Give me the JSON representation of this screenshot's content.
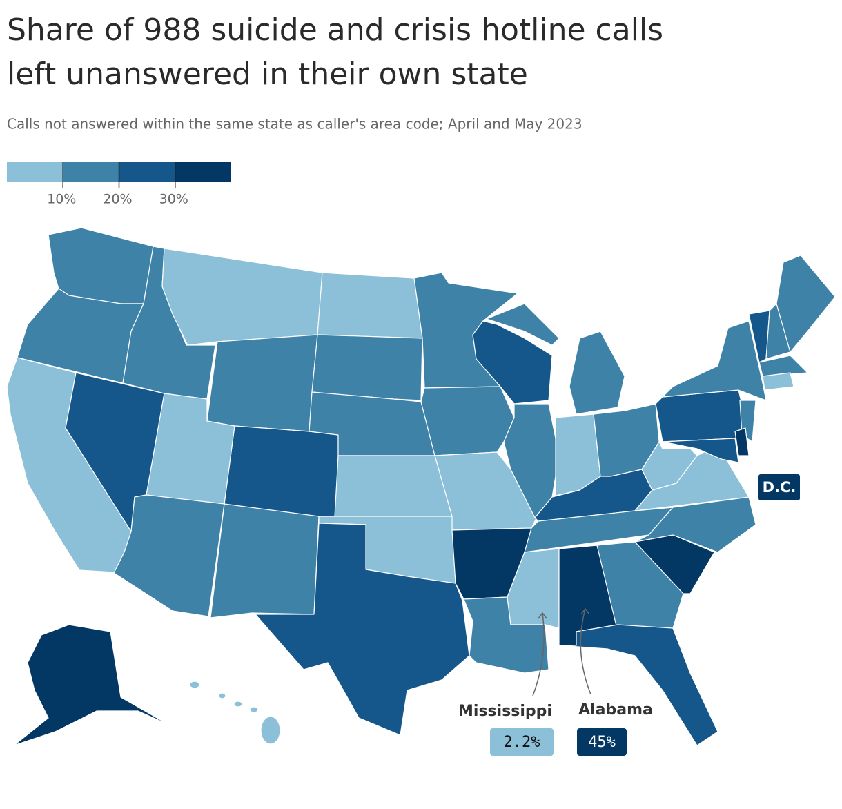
{
  "chart_data": {
    "type": "choropleth",
    "title": "Share of 988 suicide and crisis hotline calls left unanswered in their own state",
    "subtitle": "Calls not answered within the same state as caller's area code; April and May 2023",
    "legend": {
      "colors": [
        "#8bc0d8",
        "#3f82a8",
        "#15578a",
        "#033764"
      ],
      "lim": [
        0,
        40
      ],
      "ticks": [
        {
          "value": 10,
          "label": "10%"
        },
        {
          "value": 20,
          "label": "20%"
        },
        {
          "value": 30,
          "label": "30%"
        }
      ]
    },
    "annotations": [
      {
        "label": "Mississippi",
        "value": 2.2,
        "value_label": "2.2%"
      },
      {
        "label": "Alabama",
        "value": 45,
        "value_label": "45%"
      },
      {
        "label": "D.C."
      }
    ]
  }
}
